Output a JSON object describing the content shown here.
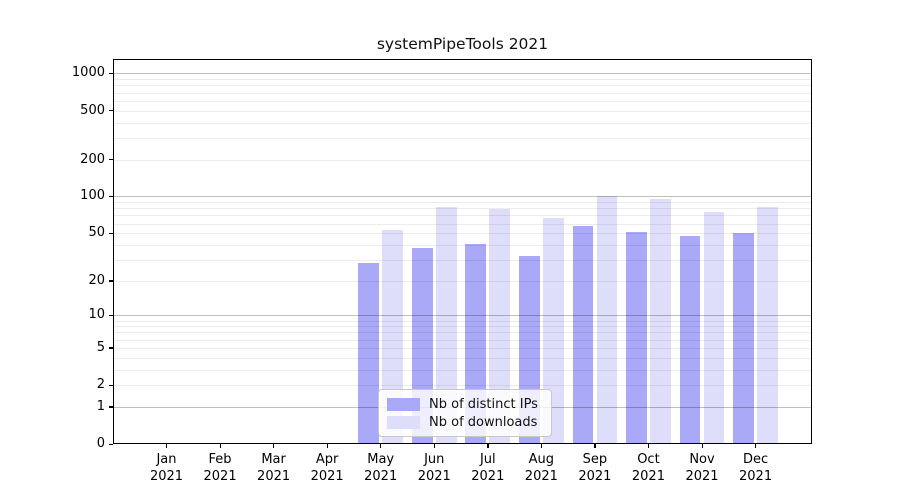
{
  "chart_data": {
    "type": "bar",
    "title": "systemPipeTools 2021",
    "categories": [
      "Jan 2021",
      "Feb 2021",
      "Mar 2021",
      "Apr 2021",
      "May 2021",
      "Jun 2021",
      "Jul 2021",
      "Aug 2021",
      "Sep 2021",
      "Oct 2021",
      "Nov 2021",
      "Dec 2021"
    ],
    "series": [
      {
        "name": "Nb of distinct IPs",
        "color": "#a9a9f7",
        "values": [
          0,
          0,
          0,
          0,
          28,
          38,
          41,
          32,
          57,
          51,
          47,
          50
        ]
      },
      {
        "name": "Nb of downloads",
        "color": "#dedefa",
        "values": [
          0,
          0,
          0,
          0,
          53,
          82,
          79,
          67,
          100,
          96,
          74,
          82
        ]
      }
    ],
    "yticks": [
      0,
      1,
      2,
      5,
      10,
      20,
      50,
      100,
      200,
      500,
      1000
    ],
    "yscale": "log10(1+y)",
    "ylim": [
      0,
      1310
    ],
    "xlabel": "",
    "ylabel": "",
    "grid": {
      "orientation": "horizontal",
      "minor_color": "#ececec",
      "major_color": "#c0c0c0",
      "majors_at": [
        1,
        10,
        100,
        1000
      ]
    },
    "legend": {
      "position": "lower center inside",
      "entries": [
        "Nb of distinct IPs",
        "Nb of downloads"
      ]
    },
    "axis_color": "#000000",
    "background_color": "#ffffff"
  }
}
